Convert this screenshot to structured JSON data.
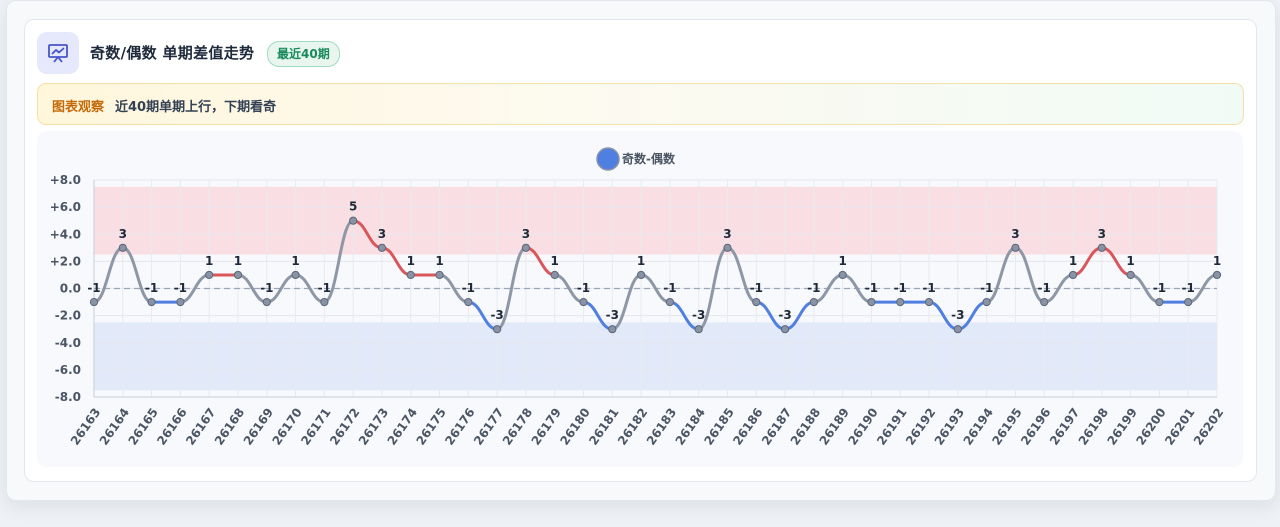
{
  "header": {
    "title": "奇数/偶数 单期差值走势",
    "badge": "最近40期",
    "icon": "chart-presentation-icon"
  },
  "observation": {
    "label": "图表观察",
    "text": "近40期单期上行，下期看奇"
  },
  "chart_data": {
    "type": "line",
    "categories": [
      "26163",
      "26164",
      "26165",
      "26166",
      "26167",
      "26168",
      "26169",
      "26170",
      "26171",
      "26172",
      "26173",
      "26174",
      "26175",
      "26176",
      "26177",
      "26178",
      "26179",
      "26180",
      "26181",
      "26182",
      "26183",
      "26184",
      "26185",
      "26186",
      "26187",
      "26188",
      "26189",
      "26190",
      "26191",
      "26192",
      "26193",
      "26194",
      "26195",
      "26196",
      "26197",
      "26198",
      "26199",
      "26200",
      "26201",
      "26202"
    ],
    "series": [
      {
        "name": "奇数-偶数",
        "values": [
          -1,
          3,
          -1,
          -1,
          1,
          1,
          -1,
          1,
          -1,
          5,
          3,
          1,
          1,
          -1,
          -3,
          3,
          1,
          -1,
          -3,
          1,
          -1,
          -3,
          3,
          -1,
          -3,
          -1,
          1,
          -1,
          -1,
          -1,
          -3,
          -1,
          3,
          -1,
          1,
          3,
          1,
          -1,
          -1,
          1
        ],
        "color": "#4f7fe0"
      }
    ],
    "ylim": [
      -8,
      8
    ],
    "yticks": [
      "+8.0",
      "+6.0",
      "+4.0",
      "+2.0",
      "0.0",
      "-2.0",
      "-4.0",
      "-6.0",
      "-8.0"
    ],
    "ytick_values": [
      8,
      6,
      4,
      2,
      0,
      -2,
      -4,
      -6,
      -8
    ],
    "bands": [
      {
        "from": 2.5,
        "to": 7.5,
        "color": "#f9dfe3"
      },
      {
        "from": -7.5,
        "to": -2.5,
        "color": "#e2e9f9"
      }
    ],
    "colors": {
      "up": "#d9575a",
      "down": "#4f7fe0",
      "neutral": "#8d97a5",
      "zero_line": "#9aa6b8"
    },
    "legend_position": "top-center",
    "grid": true
  }
}
